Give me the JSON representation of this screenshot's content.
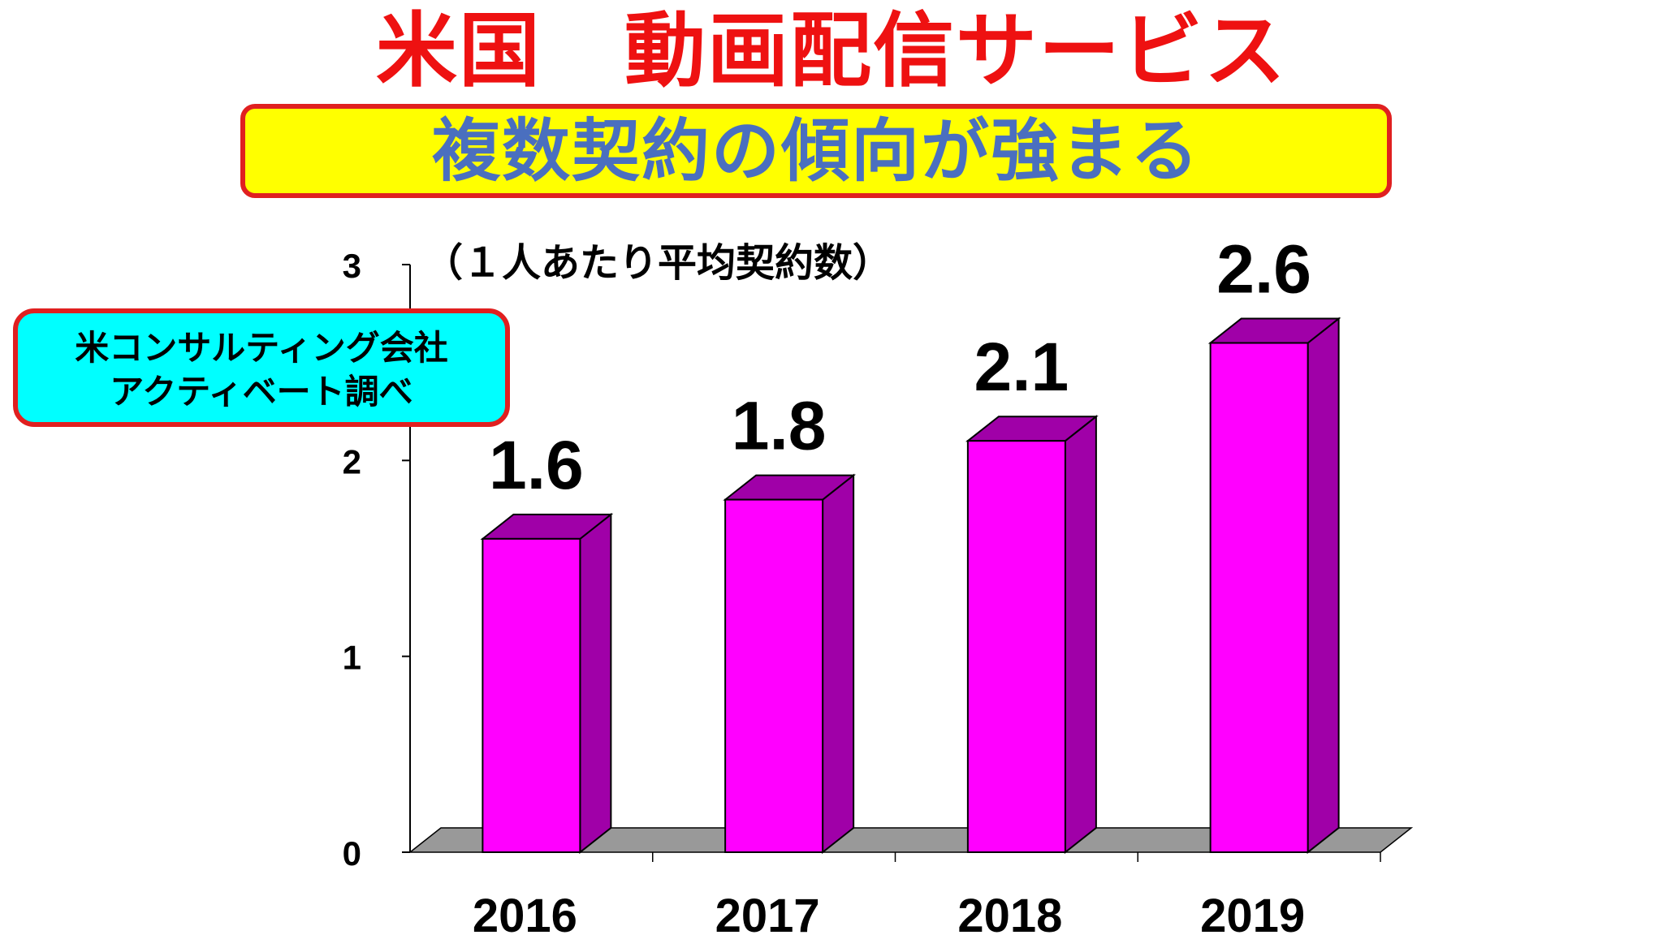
{
  "title": "米国　動画配信サービス",
  "subtitle": "複数契約の傾向が強まる",
  "source_note": {
    "line1": "米コンサルティング会社",
    "line2": "アクティベート調べ"
  },
  "colors": {
    "title": "#ee1111",
    "subtitle_text": "#4a6fbf",
    "subtitle_bg": "#ffff00",
    "source_bg": "#00ffff",
    "box_border": "#e02020",
    "bar_front": "#ff00ff",
    "bar_side": "#a000a8",
    "floor": "#999999"
  },
  "chart_data": {
    "type": "bar",
    "title": "",
    "xlabel": "",
    "ylabel": "（１人あたり平均契約数）",
    "categories": [
      "2016",
      "2017",
      "2018",
      "2019"
    ],
    "values": [
      1.6,
      1.8,
      2.1,
      2.6
    ],
    "value_labels": [
      "1.6",
      "1.8",
      "2.1",
      "2.6"
    ],
    "ylim": [
      0,
      3
    ],
    "yticks": [
      "0",
      "1",
      "2",
      "3"
    ],
    "style": "3d",
    "grid": false,
    "legend": "none"
  }
}
